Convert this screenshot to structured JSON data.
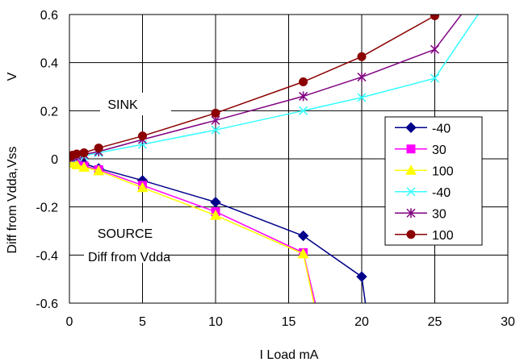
{
  "chart_data": {
    "type": "line",
    "xlabel": "I Load mA",
    "ylabel_upper": "V",
    "ylabel_lower": "Diff from Vdda,Vss",
    "xlim": [
      0,
      30
    ],
    "ylim": [
      -0.6,
      0.6
    ],
    "xticks": [
      0,
      5,
      10,
      15,
      20,
      25,
      30
    ],
    "yticks": [
      -0.6,
      -0.4,
      -0.2,
      0,
      0.2,
      0.4,
      0.6
    ],
    "xtick_labels": [
      "0",
      "5",
      "10",
      "15",
      "20",
      "25",
      "30"
    ],
    "ytick_labels": [
      "-0.6",
      "-0.4",
      "-0.2",
      "0",
      "0.2",
      "0.4",
      "0.6"
    ],
    "grid": true,
    "legend_position": "right",
    "annotations": {
      "sink": "SINK",
      "source": "SOURCE",
      "source_note": "Diff from Vdda"
    },
    "series": [
      {
        "name": "-40",
        "color": "#00008B",
        "marker": "diamond",
        "group": "source",
        "x": [
          0,
          0.1,
          0.2,
          0.5,
          1,
          2,
          5,
          10,
          16,
          20,
          20.3
        ],
        "y": [
          -0.005,
          -0.008,
          -0.01,
          -0.015,
          -0.02,
          -0.04,
          -0.09,
          -0.18,
          -0.32,
          -0.49,
          -0.62
        ]
      },
      {
        "name": "30",
        "color": "#FF00FF",
        "marker": "square",
        "group": "source",
        "x": [
          0,
          0.1,
          0.2,
          0.5,
          1,
          2,
          5,
          10,
          16,
          16.9
        ],
        "y": [
          -0.01,
          -0.012,
          -0.015,
          -0.02,
          -0.03,
          -0.045,
          -0.11,
          -0.22,
          -0.39,
          -0.62
        ]
      },
      {
        "name": "100",
        "color": "#FFFF00",
        "marker": "triangle",
        "group": "source",
        "x": [
          0,
          0.1,
          0.2,
          0.5,
          1,
          2,
          5,
          10,
          16,
          16.8
        ],
        "y": [
          -0.012,
          -0.015,
          -0.018,
          -0.025,
          -0.035,
          -0.05,
          -0.12,
          -0.235,
          -0.395,
          -0.62
        ]
      },
      {
        "name": "-40",
        "color": "#33FFFF",
        "marker": "x",
        "group": "sink",
        "x": [
          0,
          0.1,
          0.2,
          0.5,
          1,
          2,
          5,
          10,
          16,
          20,
          25,
          28.3
        ],
        "y": [
          0.003,
          0.005,
          0.006,
          0.008,
          0.012,
          0.025,
          0.06,
          0.12,
          0.2,
          0.255,
          0.335,
          0.63
        ]
      },
      {
        "name": "30",
        "color": "#800080",
        "marker": "star",
        "group": "sink",
        "x": [
          0,
          0.1,
          0.2,
          0.5,
          1,
          2,
          5,
          10,
          16,
          20,
          25,
          27.2
        ],
        "y": [
          0.005,
          0.007,
          0.01,
          0.012,
          0.018,
          0.03,
          0.08,
          0.16,
          0.26,
          0.34,
          0.455,
          0.63
        ]
      },
      {
        "name": "100",
        "color": "#8B0000",
        "marker": "circle",
        "group": "sink",
        "x": [
          0,
          0.1,
          0.2,
          0.5,
          1,
          2,
          5,
          10,
          16,
          20,
          25,
          26.4
        ],
        "y": [
          0.01,
          0.012,
          0.015,
          0.02,
          0.025,
          0.045,
          0.095,
          0.19,
          0.32,
          0.425,
          0.595,
          0.63
        ]
      }
    ]
  }
}
